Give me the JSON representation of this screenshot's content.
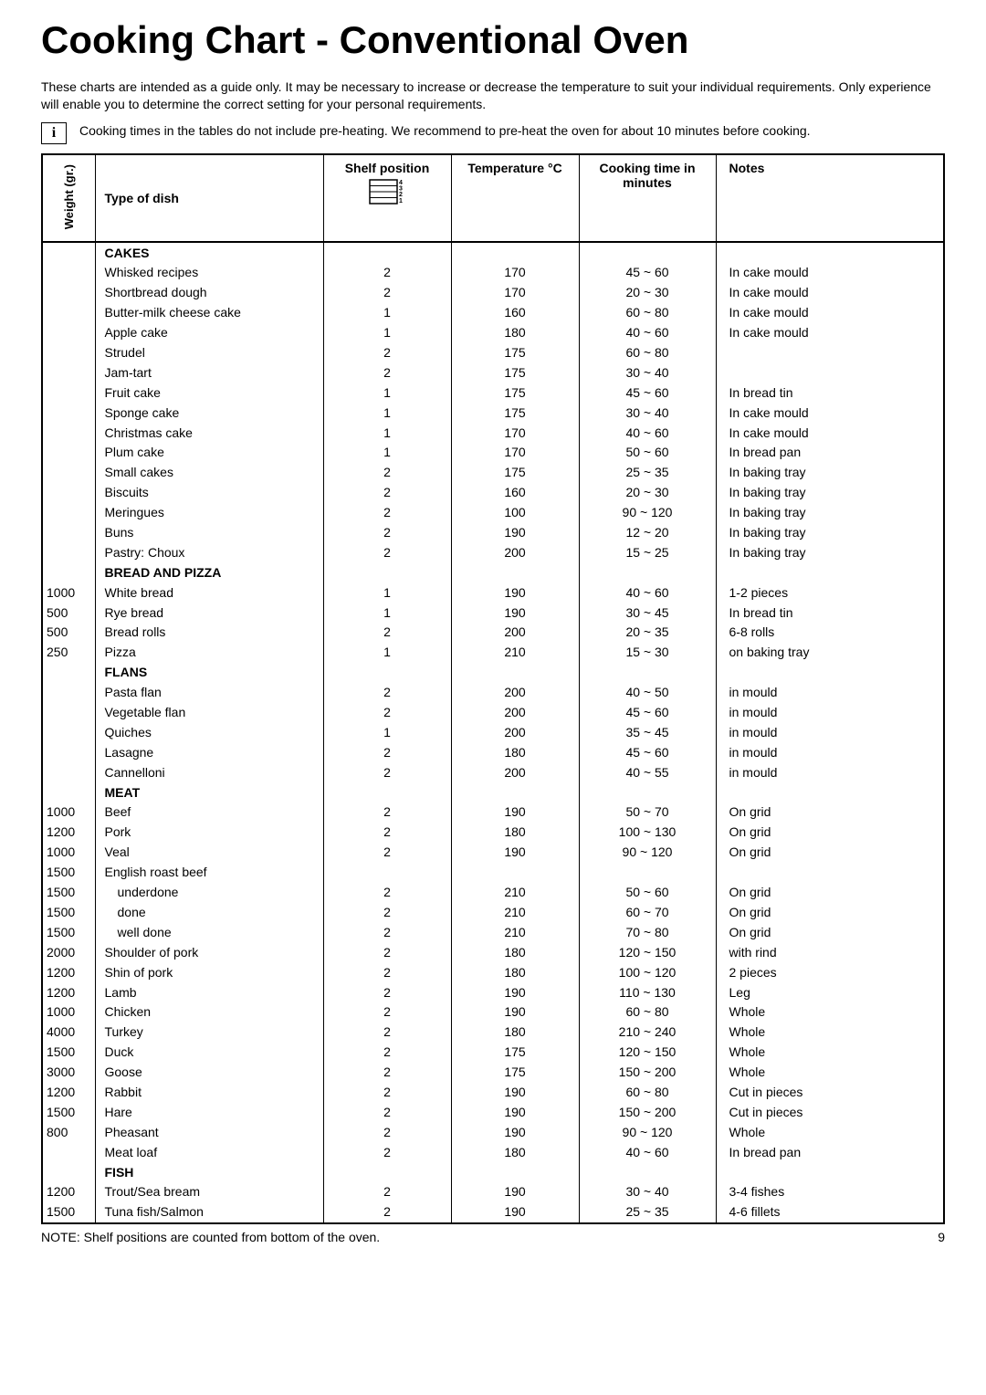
{
  "title": "Cooking Chart - Conventional Oven",
  "intro": "These charts are intended as a guide only. It may be necessary to increase or decrease the temperature to suit your individual requirements. Only experience will enable you to determine the correct setting for your personal requirements.",
  "info_text": "Cooking times in the tables do not include pre-heating. We recommend to pre-heat the oven for about 10 minutes before cooking.",
  "cols": {
    "weight": "Weight (gr.)",
    "type": "Type of dish",
    "shelf": "Shelf position",
    "temp": "Temperature °C",
    "time": "Cooking time in minutes",
    "notes": "Notes"
  },
  "rows": [
    {
      "section": "CAKES"
    },
    {
      "type": "Whisked recipes",
      "shelf": "2",
      "temp": "170",
      "time": "45 ~ 60",
      "notes": "In cake mould"
    },
    {
      "type": "Shortbread dough",
      "shelf": "2",
      "temp": "170",
      "time": "20 ~ 30",
      "notes": "In cake mould"
    },
    {
      "type": "Butter-milk cheese cake",
      "shelf": "1",
      "temp": "160",
      "time": "60 ~ 80",
      "notes": "In cake mould"
    },
    {
      "type": "Apple cake",
      "shelf": "1",
      "temp": "180",
      "time": "40 ~ 60",
      "notes": "In cake mould"
    },
    {
      "type": "Strudel",
      "shelf": "2",
      "temp": "175",
      "time": "60 ~ 80",
      "notes": ""
    },
    {
      "type": "Jam-tart",
      "shelf": "2",
      "temp": "175",
      "time": "30 ~ 40",
      "notes": ""
    },
    {
      "type": "Fruit cake",
      "shelf": "1",
      "temp": "175",
      "time": "45 ~ 60",
      "notes": "In bread tin"
    },
    {
      "type": "Sponge cake",
      "shelf": "1",
      "temp": "175",
      "time": "30 ~ 40",
      "notes": "In cake mould"
    },
    {
      "type": "Christmas cake",
      "shelf": "1",
      "temp": "170",
      "time": "40 ~ 60",
      "notes": "In cake mould"
    },
    {
      "type": "Plum cake",
      "shelf": "1",
      "temp": "170",
      "time": "50 ~ 60",
      "notes": "In bread pan"
    },
    {
      "type": "Small cakes",
      "shelf": "2",
      "temp": "175",
      "time": "25 ~ 35",
      "notes": "In baking tray"
    },
    {
      "type": "Biscuits",
      "shelf": "2",
      "temp": "160",
      "time": "20 ~ 30",
      "notes": "In baking tray"
    },
    {
      "type": "Meringues",
      "shelf": "2",
      "temp": "100",
      "time": "90 ~ 120",
      "notes": "In baking tray"
    },
    {
      "type": "Buns",
      "shelf": "2",
      "temp": "190",
      "time": "12 ~ 20",
      "notes": "In baking tray"
    },
    {
      "type": "Pastry: Choux",
      "shelf": "2",
      "temp": "200",
      "time": "15 ~ 25",
      "notes": "In baking tray"
    },
    {
      "section": "BREAD AND PIZZA"
    },
    {
      "weight": "1000",
      "type": "White bread",
      "shelf": "1",
      "temp": "190",
      "time": "40 ~ 60",
      "notes": "1-2 pieces"
    },
    {
      "weight": "500",
      "type": "Rye bread",
      "shelf": "1",
      "temp": "190",
      "time": "30 ~ 45",
      "notes": "In bread tin"
    },
    {
      "weight": "500",
      "type": "Bread rolls",
      "shelf": "2",
      "temp": "200",
      "time": "20 ~ 35",
      "notes": "6-8 rolls"
    },
    {
      "weight": "250",
      "type": "Pizza",
      "shelf": "1",
      "temp": "210",
      "time": "15 ~ 30",
      "notes": "on baking tray"
    },
    {
      "section": "FLANS"
    },
    {
      "type": "Pasta flan",
      "shelf": "2",
      "temp": "200",
      "time": "40 ~ 50",
      "notes": "in mould"
    },
    {
      "type": "Vegetable flan",
      "shelf": "2",
      "temp": "200",
      "time": "45 ~ 60",
      "notes": "in mould"
    },
    {
      "type": "Quiches",
      "shelf": "1",
      "temp": "200",
      "time": "35 ~ 45",
      "notes": "in mould"
    },
    {
      "type": "Lasagne",
      "shelf": "2",
      "temp": "180",
      "time": "45 ~ 60",
      "notes": "in mould"
    },
    {
      "type": "Cannelloni",
      "shelf": "2",
      "temp": "200",
      "time": "40 ~ 55",
      "notes": "in mould"
    },
    {
      "section": "MEAT"
    },
    {
      "weight": "1000",
      "type": "Beef",
      "shelf": "2",
      "temp": "190",
      "time": "50 ~ 70",
      "notes": "On grid"
    },
    {
      "weight": "1200",
      "type": "Pork",
      "shelf": "2",
      "temp": "180",
      "time": "100 ~ 130",
      "notes": "On grid"
    },
    {
      "weight": "1000",
      "type": "Veal",
      "shelf": "2",
      "temp": "190",
      "time": "90 ~ 120",
      "notes": "On grid"
    },
    {
      "weight": "1500",
      "type": "English roast beef"
    },
    {
      "weight": "1500",
      "type": "underdone",
      "indent": true,
      "shelf": "2",
      "temp": "210",
      "time": "50 ~ 60",
      "notes": "On grid"
    },
    {
      "weight": "1500",
      "type": "done",
      "indent": true,
      "shelf": "2",
      "temp": "210",
      "time": "60 ~ 70",
      "notes": "On grid"
    },
    {
      "weight": "1500",
      "type": "well done",
      "indent": true,
      "shelf": "2",
      "temp": "210",
      "time": "70 ~ 80",
      "notes": "On grid"
    },
    {
      "weight": "2000",
      "type": "Shoulder of pork",
      "shelf": "2",
      "temp": "180",
      "time": "120 ~ 150",
      "notes": "with rind"
    },
    {
      "weight": "1200",
      "type": "Shin of pork",
      "shelf": "2",
      "temp": "180",
      "time": "100 ~ 120",
      "notes": "2 pieces"
    },
    {
      "weight": "1200",
      "type": "Lamb",
      "shelf": "2",
      "temp": "190",
      "time": "110 ~ 130",
      "notes": "Leg"
    },
    {
      "weight": "1000",
      "type": "Chicken",
      "shelf": "2",
      "temp": "190",
      "time": "60 ~ 80",
      "notes": "Whole"
    },
    {
      "weight": "4000",
      "type": "Turkey",
      "shelf": "2",
      "temp": "180",
      "time": "210 ~ 240",
      "notes": "Whole"
    },
    {
      "weight": "1500",
      "type": "Duck",
      "shelf": "2",
      "temp": "175",
      "time": "120 ~ 150",
      "notes": "Whole"
    },
    {
      "weight": "3000",
      "type": "Goose",
      "shelf": "2",
      "temp": "175",
      "time": "150 ~ 200",
      "notes": "Whole"
    },
    {
      "weight": "1200",
      "type": "Rabbit",
      "shelf": "2",
      "temp": "190",
      "time": "60 ~ 80",
      "notes": "Cut in pieces"
    },
    {
      "weight": "1500",
      "type": "Hare",
      "shelf": "2",
      "temp": "190",
      "time": "150 ~ 200",
      "notes": "Cut in pieces"
    },
    {
      "weight": "800",
      "type": "Pheasant",
      "shelf": "2",
      "temp": "190",
      "time": "90 ~ 120",
      "notes": "Whole"
    },
    {
      "type": "Meat loaf",
      "shelf": "2",
      "temp": "180",
      "time": "40 ~ 60",
      "notes": "In bread pan"
    },
    {
      "section": "FISH"
    },
    {
      "weight": "1200",
      "type": "Trout/Sea bream",
      "shelf": "2",
      "temp": "190",
      "time": "30 ~ 40",
      "notes": "3-4 fishes"
    },
    {
      "weight": "1500",
      "type": "Tuna fish/Salmon",
      "shelf": "2",
      "temp": "190",
      "time": "25 ~ 35",
      "notes": "4-6 fillets"
    }
  ],
  "footnote": "NOTE: Shelf positions are counted from bottom of the oven.",
  "page_number": "9"
}
